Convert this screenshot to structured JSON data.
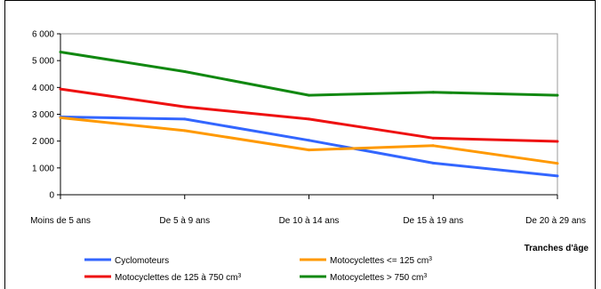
{
  "chart_data": {
    "type": "line",
    "categories": [
      "Moins de 5 ans",
      "De 5 à 9 ans",
      "De 10 à 14 ans",
      "De 15 à 19 ans",
      "De 20 à 29 ans"
    ],
    "xlabel": "Tranches d'âge",
    "ylabel": "",
    "ylim": [
      0,
      6000
    ],
    "yticks": [
      {
        "value": 0,
        "label": "0"
      },
      {
        "value": 1000,
        "label": "1 000"
      },
      {
        "value": 2000,
        "label": "2 000"
      },
      {
        "value": 3000,
        "label": "3 000"
      },
      {
        "value": 4000,
        "label": "4 000"
      },
      {
        "value": 5000,
        "label": "5 000"
      },
      {
        "value": 6000,
        "label": "6 000"
      }
    ],
    "grid": false,
    "legend_position": "bottom",
    "series": [
      {
        "name": "Cyclomoteurs",
        "name_sup": "",
        "color": "#3366ff",
        "values": [
          2900,
          2820,
          2030,
          1180,
          700
        ]
      },
      {
        "name": "Motocyclettes <= 125 cm",
        "name_sup": "3",
        "color": "#ff9900",
        "values": [
          2870,
          2390,
          1670,
          1830,
          1170
        ]
      },
      {
        "name": "Motocyclettes de 125 à 750 cm",
        "name_sup": "3",
        "color": "#ee1111",
        "values": [
          3940,
          3280,
          2820,
          2110,
          1990
        ]
      },
      {
        "name": "Motocyclettes > 750 cm",
        "name_sup": "3",
        "color": "#118811",
        "values": [
          5320,
          4590,
          3710,
          3820,
          3710
        ]
      }
    ]
  }
}
